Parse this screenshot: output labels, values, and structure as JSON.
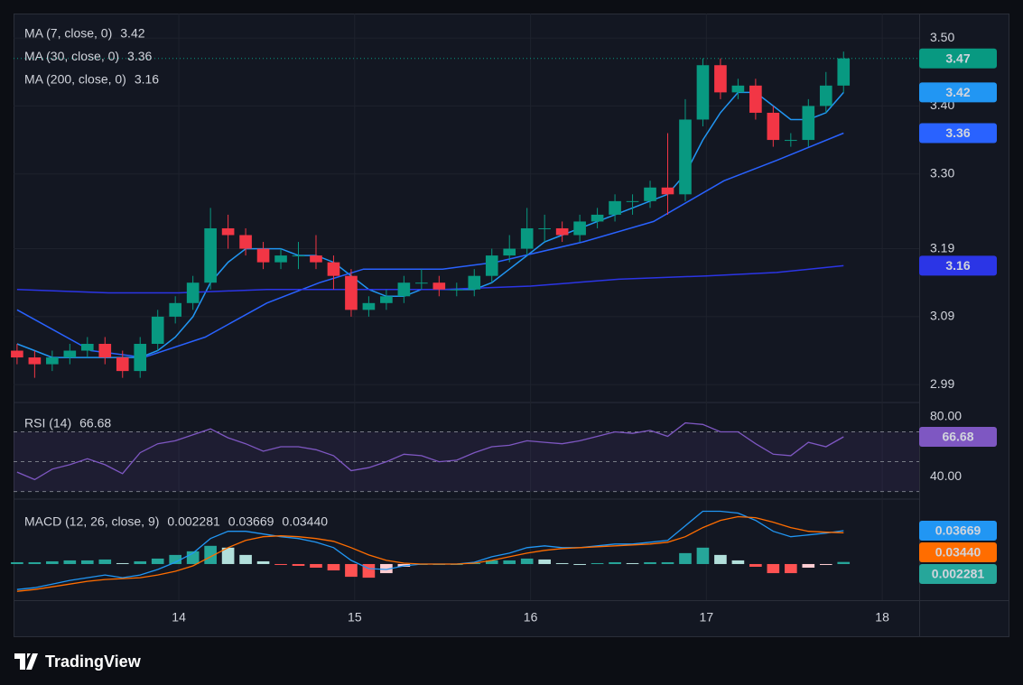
{
  "watermark": "TradingView",
  "chart_data": [
    {
      "type": "candlestick",
      "x": [
        13.08,
        13.18,
        13.28,
        13.38,
        13.48,
        13.58,
        13.68,
        13.78,
        13.88,
        13.98,
        14.08,
        14.18,
        14.28,
        14.38,
        14.48,
        14.58,
        14.68,
        14.78,
        14.88,
        14.98,
        15.08,
        15.18,
        15.28,
        15.38,
        15.48,
        15.58,
        15.68,
        15.78,
        15.88,
        15.98,
        16.08,
        16.18,
        16.28,
        16.38,
        16.48,
        16.58,
        16.68,
        16.78,
        16.88,
        16.98,
        17.08,
        17.18,
        17.28,
        17.38,
        17.48,
        17.58,
        17.68,
        17.78
      ],
      "open": [
        3.04,
        3.03,
        3.02,
        3.03,
        3.04,
        3.05,
        3.03,
        3.01,
        3.05,
        3.09,
        3.11,
        3.14,
        3.22,
        3.21,
        3.19,
        3.17,
        3.18,
        3.18,
        3.17,
        3.15,
        3.1,
        3.11,
        3.12,
        3.14,
        3.14,
        3.13,
        3.13,
        3.15,
        3.18,
        3.19,
        3.22,
        3.22,
        3.21,
        3.23,
        3.24,
        3.26,
        3.26,
        3.28,
        3.27,
        3.38,
        3.46,
        3.42,
        3.43,
        3.39,
        3.35,
        3.35,
        3.4,
        3.43
      ],
      "high": [
        3.05,
        3.04,
        3.04,
        3.05,
        3.06,
        3.06,
        3.04,
        3.06,
        3.1,
        3.12,
        3.15,
        3.25,
        3.24,
        3.22,
        3.2,
        3.19,
        3.2,
        3.21,
        3.18,
        3.16,
        3.12,
        3.13,
        3.15,
        3.16,
        3.15,
        3.14,
        3.16,
        3.19,
        3.21,
        3.25,
        3.24,
        3.23,
        3.24,
        3.25,
        3.27,
        3.27,
        3.29,
        3.36,
        3.41,
        3.47,
        3.47,
        3.44,
        3.44,
        3.4,
        3.36,
        3.41,
        3.45,
        3.48
      ],
      "low": [
        3.02,
        3.0,
        3.01,
        3.02,
        3.03,
        3.02,
        3.0,
        3.0,
        3.04,
        3.08,
        3.1,
        3.13,
        3.19,
        3.18,
        3.16,
        3.16,
        3.16,
        3.16,
        3.13,
        3.09,
        3.09,
        3.1,
        3.11,
        3.13,
        3.12,
        3.12,
        3.12,
        3.14,
        3.17,
        3.18,
        3.2,
        3.2,
        3.2,
        3.22,
        3.23,
        3.24,
        3.25,
        3.24,
        3.26,
        3.37,
        3.41,
        3.41,
        3.38,
        3.34,
        3.34,
        3.34,
        3.39,
        3.42
      ],
      "close": [
        3.03,
        3.02,
        3.03,
        3.04,
        3.05,
        3.03,
        3.01,
        3.05,
        3.09,
        3.11,
        3.14,
        3.22,
        3.21,
        3.19,
        3.17,
        3.18,
        3.18,
        3.17,
        3.15,
        3.1,
        3.11,
        3.12,
        3.14,
        3.14,
        3.13,
        3.13,
        3.15,
        3.18,
        3.19,
        3.22,
        3.22,
        3.21,
        3.23,
        3.24,
        3.26,
        3.26,
        3.28,
        3.27,
        3.38,
        3.46,
        3.42,
        3.43,
        3.39,
        3.35,
        3.35,
        3.4,
        3.43,
        3.47
      ],
      "up_color": "#089981",
      "down_color": "#f23645",
      "ylim": [
        2.965,
        3.536
      ],
      "yticks": [
        2.99,
        3.09,
        3.19,
        {
          "value": 3.3,
          "label": "3.30"
        },
        {
          "value": 3.4,
          "label": "3.40"
        },
        {
          "value": 3.5,
          "label": "3.50"
        }
      ],
      "grid": true,
      "series": [
        {
          "name": "MA (7, close, 0)",
          "color": "#2196f3",
          "value_label": "3.42",
          "values": [
            3.05,
            3.04,
            3.03,
            3.03,
            3.03,
            3.03,
            3.03,
            3.03,
            3.04,
            3.06,
            3.09,
            3.14,
            3.17,
            3.19,
            3.19,
            3.19,
            3.18,
            3.18,
            3.17,
            3.15,
            3.13,
            3.12,
            3.12,
            3.13,
            3.13,
            3.13,
            3.13,
            3.14,
            3.16,
            3.18,
            3.2,
            3.21,
            3.22,
            3.23,
            3.24,
            3.25,
            3.26,
            3.27,
            3.3,
            3.35,
            3.39,
            3.42,
            3.42,
            3.4,
            3.38,
            3.38,
            3.39,
            3.42
          ]
        },
        {
          "name": "MA (30, close, 0)",
          "color": "#2962ff",
          "value_label": "3.36",
          "x": [
            13.08,
            13.5,
            13.8,
            14.15,
            14.5,
            14.8,
            15.05,
            15.5,
            15.8,
            16.3,
            16.7,
            17.1,
            17.4,
            17.78
          ],
          "values": [
            3.1,
            3.04,
            3.03,
            3.06,
            3.11,
            3.14,
            3.16,
            3.16,
            3.17,
            3.2,
            3.23,
            3.29,
            3.32,
            3.36
          ]
        },
        {
          "name": "MA (200, close, 0)",
          "color": "#2b35e6",
          "value_label": "3.16",
          "x": [
            13.08,
            13.6,
            14.0,
            14.5,
            15.0,
            15.5,
            16.0,
            16.5,
            17.0,
            17.4,
            17.78
          ],
          "values": [
            3.13,
            3.125,
            3.125,
            3.13,
            3.13,
            3.13,
            3.135,
            3.145,
            3.15,
            3.155,
            3.165
          ]
        }
      ]
    },
    {
      "type": "line",
      "x": [
        13.08,
        13.18,
        13.28,
        13.38,
        13.48,
        13.58,
        13.68,
        13.78,
        13.88,
        13.98,
        14.08,
        14.18,
        14.28,
        14.38,
        14.48,
        14.58,
        14.68,
        14.78,
        14.88,
        14.98,
        15.08,
        15.18,
        15.28,
        15.38,
        15.48,
        15.58,
        15.68,
        15.78,
        15.88,
        15.98,
        16.08,
        16.18,
        16.28,
        16.38,
        16.48,
        16.58,
        16.68,
        16.78,
        16.88,
        16.98,
        17.08,
        17.18,
        17.28,
        17.38,
        17.48,
        17.58,
        17.68,
        17.78
      ],
      "series": [
        {
          "name": "RSI (14)",
          "color": "#7e57c2",
          "value_label": "66.68",
          "values": [
            43,
            38,
            45,
            48,
            52,
            48,
            42,
            56,
            62,
            64,
            68,
            72,
            66,
            62,
            57,
            60,
            60,
            58,
            54,
            44,
            46,
            50,
            55,
            54,
            50,
            51,
            56,
            60,
            61,
            64,
            63,
            62,
            64,
            67,
            70,
            69,
            71,
            67,
            76,
            75,
            70,
            70,
            62,
            55,
            54,
            63,
            60,
            66.68
          ]
        }
      ],
      "ylim": [
        25.5,
        89.1
      ],
      "yticks": [
        {
          "value": 80,
          "label": "80.00"
        },
        {
          "value": 40,
          "label": "40.00"
        }
      ],
      "levels": [
        70,
        50,
        30
      ]
    },
    {
      "type": "macd",
      "title": "MACD (12, 26, close, 9)",
      "x": [
        13.08,
        13.18,
        13.28,
        13.38,
        13.48,
        13.58,
        13.68,
        13.78,
        13.88,
        13.98,
        14.08,
        14.18,
        14.28,
        14.38,
        14.48,
        14.58,
        14.68,
        14.78,
        14.88,
        14.98,
        15.08,
        15.18,
        15.28,
        15.38,
        15.48,
        15.58,
        15.68,
        15.78,
        15.88,
        15.98,
        16.08,
        16.18,
        16.28,
        16.38,
        16.48,
        16.58,
        16.68,
        16.78,
        16.88,
        16.98,
        17.08,
        17.18,
        17.28,
        17.38,
        17.48,
        17.58,
        17.68,
        17.78
      ],
      "histogram_colors": [
        "#26a69a",
        "#b2dfdb",
        "#ff5252",
        "#ffcdd2"
      ],
      "series": [
        {
          "style": "histogram",
          "color": "#26a69a",
          "value_label": "0.002281",
          "values": [
            0.002,
            0.002,
            0.003,
            0.004,
            0.004,
            0.005,
            0.001,
            0.003,
            0.006,
            0.01,
            0.014,
            0.02,
            0.018,
            0.01,
            0.003,
            -0.001,
            -0.002,
            -0.004,
            -0.007,
            -0.014,
            -0.015,
            -0.01,
            -0.003,
            0.0,
            0.0,
            0.0,
            0.001,
            0.004,
            0.004,
            0.006,
            0.005,
            0.001,
            0.0,
            0.001,
            0.002,
            0.001,
            0.002,
            0.002,
            0.012,
            0.018,
            0.01,
            0.004,
            -0.003,
            -0.01,
            -0.01,
            -0.004,
            -0.001,
            0.002281
          ]
        },
        {
          "style": "line",
          "color": "#2196f3",
          "value_label": "0.03669",
          "values": [
            -0.028,
            -0.026,
            -0.022,
            -0.018,
            -0.015,
            -0.012,
            -0.015,
            -0.012,
            -0.006,
            0.002,
            0.012,
            0.028,
            0.036,
            0.036,
            0.033,
            0.03,
            0.028,
            0.024,
            0.018,
            0.004,
            -0.005,
            -0.006,
            -0.002,
            0.0,
            0.0,
            0.0,
            0.002,
            0.008,
            0.012,
            0.018,
            0.02,
            0.018,
            0.018,
            0.02,
            0.022,
            0.022,
            0.024,
            0.026,
            0.042,
            0.058,
            0.058,
            0.056,
            0.048,
            0.036,
            0.03,
            0.032,
            0.034,
            0.03669
          ]
        },
        {
          "style": "line",
          "color": "#ff6d00",
          "value_label": "0.03440",
          "values": [
            -0.03,
            -0.028,
            -0.025,
            -0.022,
            -0.019,
            -0.017,
            -0.016,
            -0.015,
            -0.012,
            -0.008,
            -0.002,
            0.008,
            0.018,
            0.026,
            0.03,
            0.031,
            0.03,
            0.028,
            0.025,
            0.018,
            0.01,
            0.004,
            0.001,
            0.0,
            0.0,
            0.0,
            0.001,
            0.004,
            0.008,
            0.012,
            0.015,
            0.017,
            0.018,
            0.019,
            0.02,
            0.021,
            0.022,
            0.024,
            0.03,
            0.04,
            0.048,
            0.052,
            0.051,
            0.046,
            0.04,
            0.036,
            0.035,
            0.0344
          ]
        }
      ],
      "ylim": [
        -0.0397,
        0.0694
      ],
      "xlim": [
        13.06,
        18.21
      ],
      "xticks": [
        14,
        15,
        16,
        17,
        18
      ]
    }
  ]
}
